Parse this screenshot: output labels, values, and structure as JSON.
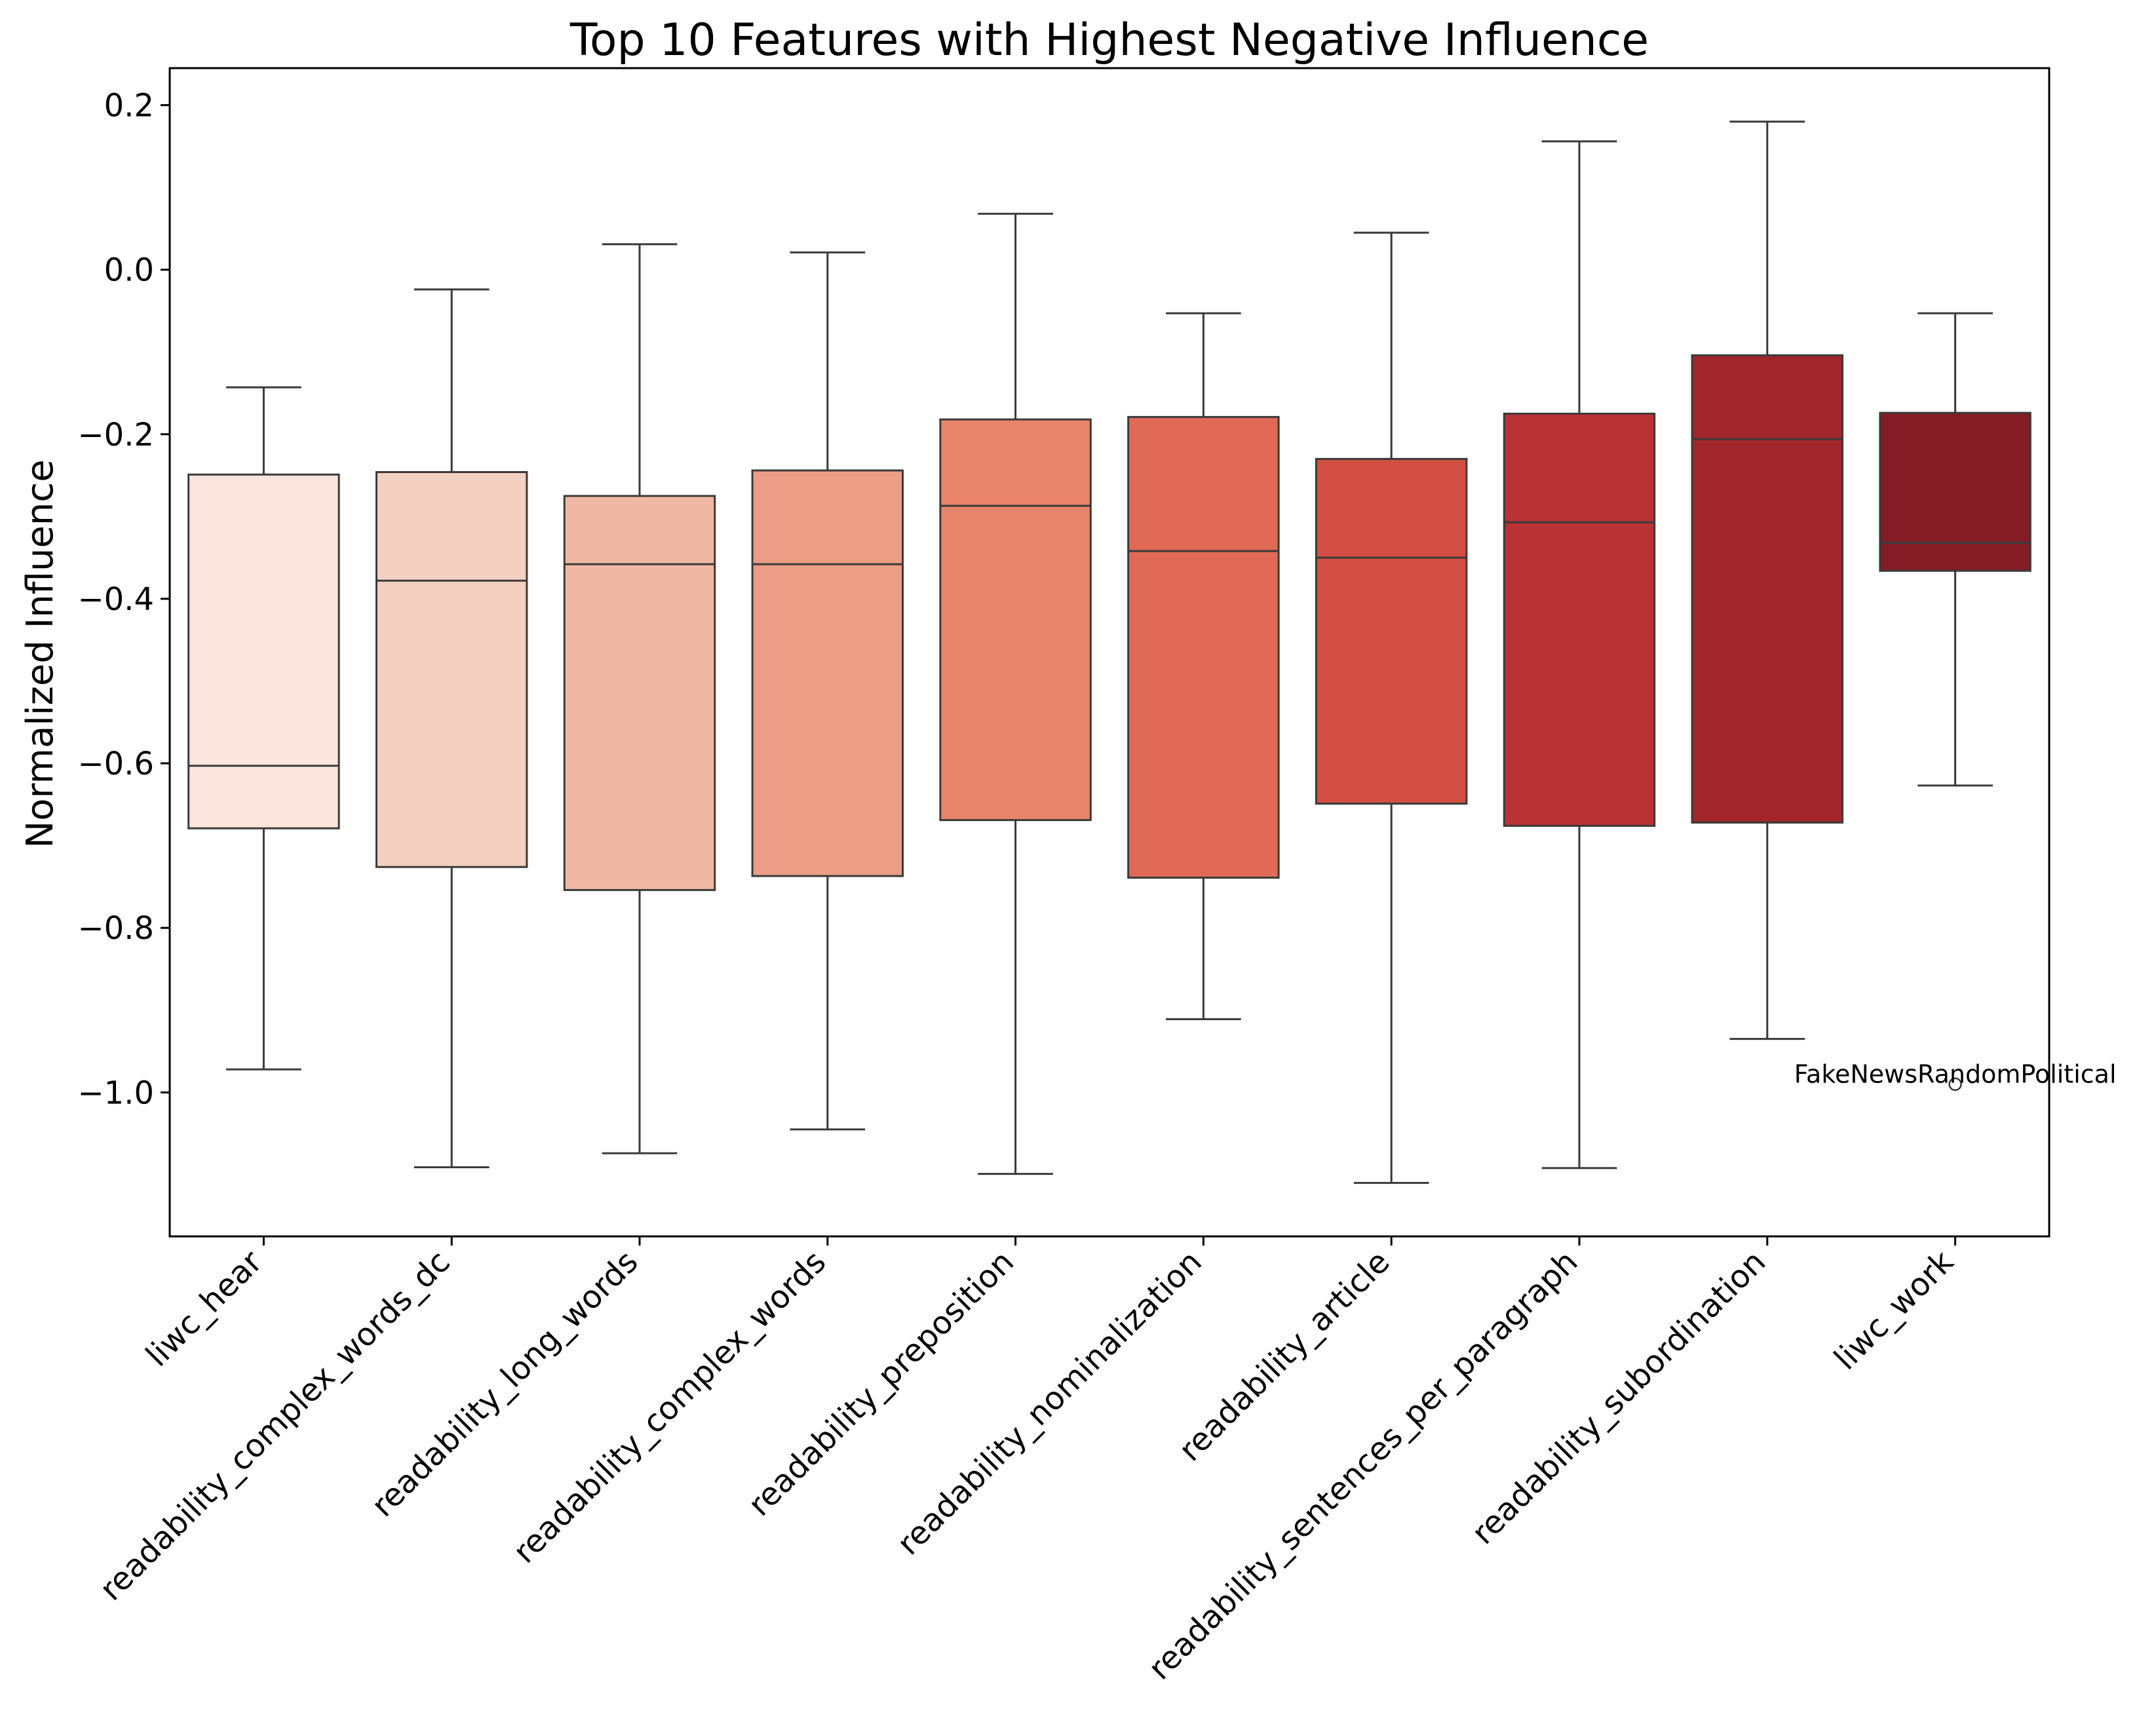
{
  "chart_data": {
    "type": "boxplot",
    "title": "Top 10 Features with Highest Negative Influence",
    "xlabel": "",
    "ylabel": "Normalized Influence",
    "ylim": [
      -1.175,
      0.245
    ],
    "yticks": [
      {
        "value": 0.2,
        "label": "0.2"
      },
      {
        "value": 0.0,
        "label": "0.0"
      },
      {
        "value": -0.2,
        "label": "−0.2"
      },
      {
        "value": -0.4,
        "label": "−0.4"
      },
      {
        "value": -0.6,
        "label": "−0.6"
      },
      {
        "value": -0.8,
        "label": "−0.8"
      },
      {
        "value": -1.0,
        "label": "−1.0"
      }
    ],
    "grid": false,
    "categories": [
      "liwc_hear",
      "readability_complex_words_dc",
      "readability_long_words",
      "readability_complex_words",
      "readability_preposition",
      "readability_nominalization",
      "readability_article",
      "readability_sentences_per_paragraph",
      "readability_subordination",
      "liwc_work"
    ],
    "boxes": [
      {
        "whisker_low": -0.972,
        "q1": -0.679,
        "median": -0.603,
        "q3": -0.249,
        "whisker_high": -0.143,
        "color": "#fbe5dc"
      },
      {
        "whisker_low": -1.091,
        "q1": -0.726,
        "median": -0.378,
        "q3": -0.246,
        "whisker_high": -0.024,
        "color": "#f4d0c1"
      },
      {
        "whisker_low": -1.074,
        "q1": -0.754,
        "median": -0.358,
        "q3": -0.275,
        "whisker_high": 0.031,
        "color": "#f0b8a3"
      },
      {
        "whisker_low": -1.045,
        "q1": -0.737,
        "median": -0.358,
        "q3": -0.244,
        "whisker_high": 0.021,
        "color": "#eb9e85"
      },
      {
        "whisker_low": -1.099,
        "q1": -0.669,
        "median": -0.287,
        "q3": -0.182,
        "whisker_high": 0.068,
        "color": "#e8846b"
      },
      {
        "whisker_low": -0.911,
        "q1": -0.739,
        "median": -0.342,
        "q3": -0.179,
        "whisker_high": -0.053,
        "color": "#e06a56"
      },
      {
        "whisker_low": -1.11,
        "q1": -0.649,
        "median": -0.35,
        "q3": -0.23,
        "whisker_high": 0.045,
        "color": "#d24e42"
      },
      {
        "whisker_low": -1.092,
        "q1": -0.676,
        "median": -0.307,
        "q3": -0.175,
        "whisker_high": 0.156,
        "color": "#ba3235"
      },
      {
        "whisker_low": -0.935,
        "q1": -0.672,
        "median": -0.206,
        "q3": -0.104,
        "whisker_high": 0.18,
        "color": "#a0262b"
      },
      {
        "whisker_low": -0.627,
        "q1": -0.366,
        "median": -0.332,
        "q3": -0.174,
        "whisker_high": -0.053,
        "color": "#841c25"
      }
    ],
    "outliers": [
      {
        "category_index": 9,
        "value": -0.99,
        "label": "FakeNewsRandomPolitical"
      }
    ]
  }
}
